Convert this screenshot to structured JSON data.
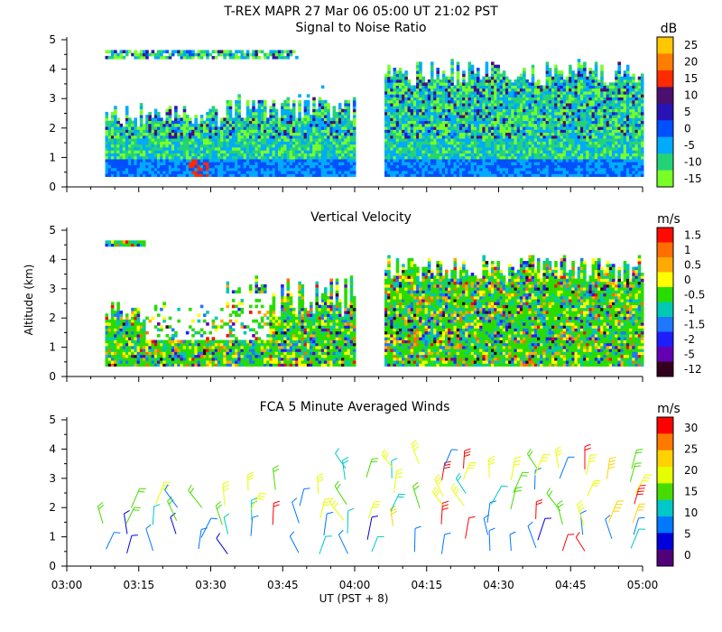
{
  "figure": {
    "title_line1": "T-REX   MAPR 27 Mar 06   05:00 UT   21:02   PST",
    "title_line2": "Signal to Noise Ratio",
    "ylabel": "Altitude (km)",
    "xlabel": "UT  (PST + 8)"
  },
  "chart_data": [
    {
      "type": "heatmap",
      "id": "snr",
      "title": "Signal to Noise Ratio",
      "units": "dB",
      "xlim": [
        "03:00",
        "05:00"
      ],
      "ylim": [
        0,
        5
      ],
      "yticks": [
        "0",
        "1",
        "2",
        "3",
        "4",
        "5"
      ],
      "colorbar": {
        "labels": [
          "25",
          "20",
          "15",
          "10",
          "5",
          "0",
          "-5",
          "-10",
          "-15"
        ],
        "colors": [
          "#ffc800",
          "#ff7d00",
          "#ff2a00",
          "#4b0f6e",
          "#2814b4",
          "#0050ff",
          "#00aaff",
          "#24d278",
          "#78ff28"
        ]
      },
      "data_gap": [
        "04:00",
        "04:06"
      ],
      "data_range_km": [
        0.35,
        4.6
      ]
    },
    {
      "type": "heatmap",
      "id": "vv",
      "title": "Vertical Velocity",
      "units": "m/s",
      "xlim": [
        "03:00",
        "05:00"
      ],
      "ylim": [
        0,
        5
      ],
      "yticks": [
        "0",
        "1",
        "2",
        "3",
        "4",
        "5"
      ],
      "colorbar": {
        "labels": [
          "1.5",
          "1",
          "0.5",
          "0",
          "-0.5",
          "-1",
          "-1.5",
          "-2",
          "-5",
          "-12"
        ],
        "colors": [
          "#ff0a00",
          "#ff6e00",
          "#ffaa00",
          "#ffff00",
          "#28dc00",
          "#00c8b4",
          "#1e78ff",
          "#1e1eff",
          "#6400b4",
          "#32001e"
        ]
      },
      "data_gap": [
        "04:00",
        "04:06"
      ],
      "data_range_km": [
        0.35,
        4.6
      ]
    },
    {
      "type": "barbs",
      "id": "winds",
      "title": "FCA 5 Minute Averaged Winds",
      "units": "m/s",
      "xlim": [
        "03:00",
        "05:00"
      ],
      "ylim": [
        0,
        5
      ],
      "yticks": [
        "0",
        "1",
        "2",
        "3",
        "4",
        "5"
      ],
      "xticks": [
        "03:00",
        "03:15",
        "03:30",
        "03:45",
        "04:00",
        "04:15",
        "04:30",
        "04:45",
        "05:00"
      ],
      "colorbar": {
        "labels": [
          "30",
          "25",
          "20",
          "15",
          "10",
          "5",
          "0"
        ],
        "colors": [
          "#ff0000",
          "#ff7800",
          "#ffd200",
          "#e6ff00",
          "#46dc00",
          "#00c8c8",
          "#0078ff",
          "#0000dc",
          "#500078"
        ]
      }
    }
  ]
}
